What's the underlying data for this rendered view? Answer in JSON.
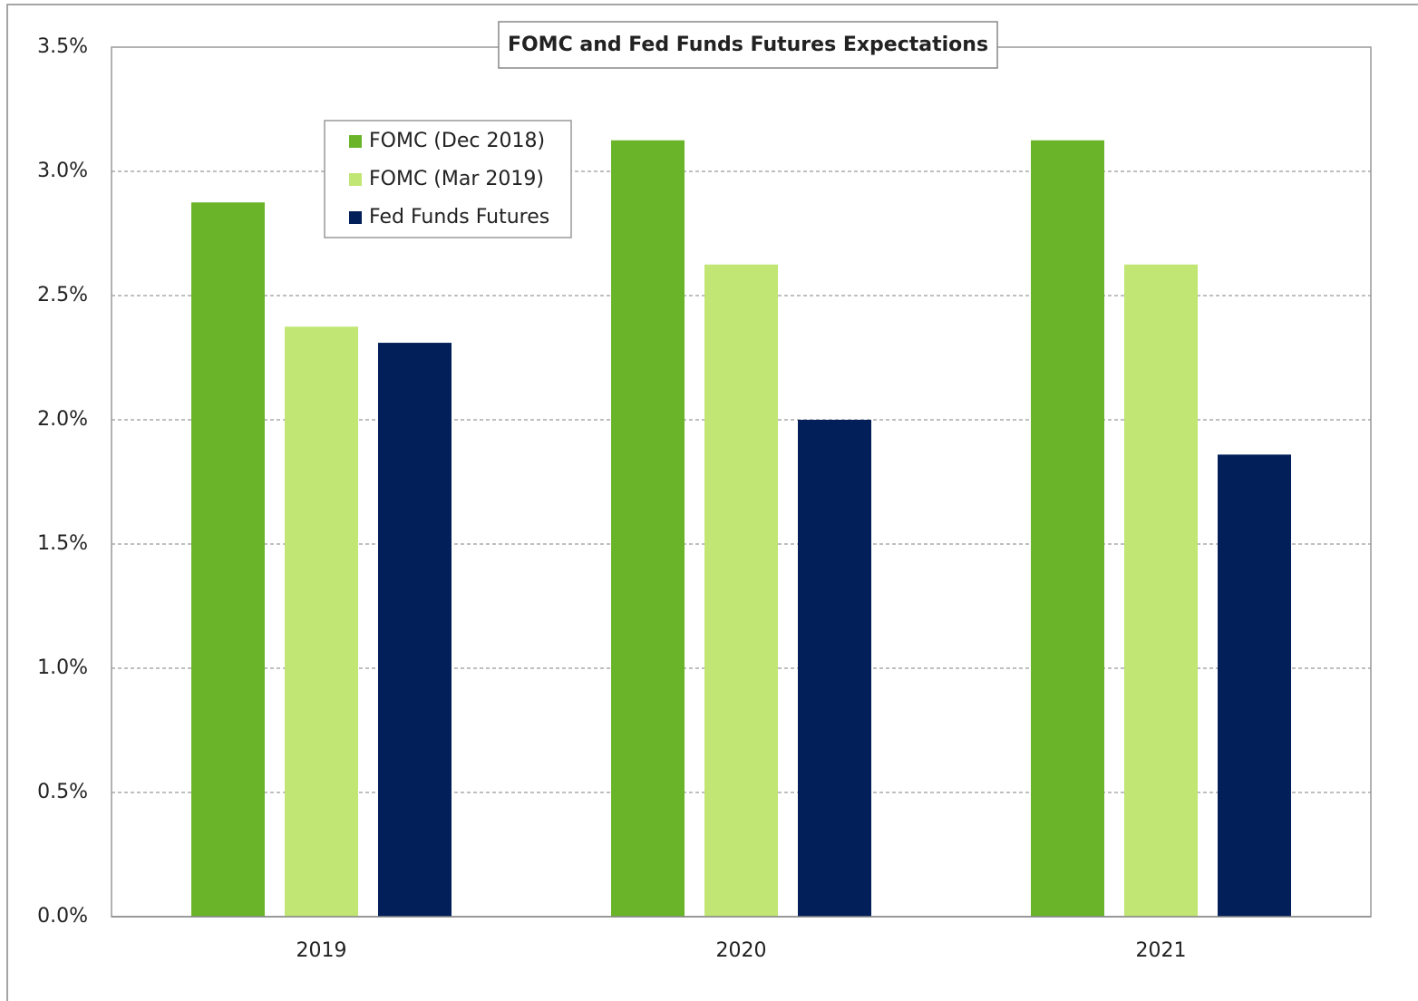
{
  "chart_data": {
    "type": "bar",
    "title": "FOMC and Fed Funds Futures Expectations",
    "categories": [
      "2019",
      "2020",
      "2021"
    ],
    "series": [
      {
        "name": "FOMC (Dec 2018)",
        "color": "#6ab42a",
        "values": [
          2.875,
          3.125,
          3.125
        ]
      },
      {
        "name": "FOMC (Mar 2019)",
        "color": "#c1e673",
        "values": [
          2.375,
          2.625,
          2.625
        ]
      },
      {
        "name": "Fed Funds Futures",
        "color": "#021f5a",
        "values": [
          2.31,
          2.0,
          1.86
        ]
      }
    ],
    "ylim": [
      0,
      3.5
    ],
    "yticks": [
      {
        "value": 0,
        "label": "0.0%"
      },
      {
        "value": 0.5,
        "label": "0.5%"
      },
      {
        "value": 1,
        "label": "1.0%"
      },
      {
        "value": 1.5,
        "label": "1.5%"
      },
      {
        "value": 2,
        "label": "2.0%"
      },
      {
        "value": 2.5,
        "label": "2.5%"
      },
      {
        "value": 3,
        "label": "3.0%"
      },
      {
        "value": 3.5,
        "label": "3.5%"
      }
    ],
    "grid": true,
    "legend": "upper left"
  }
}
